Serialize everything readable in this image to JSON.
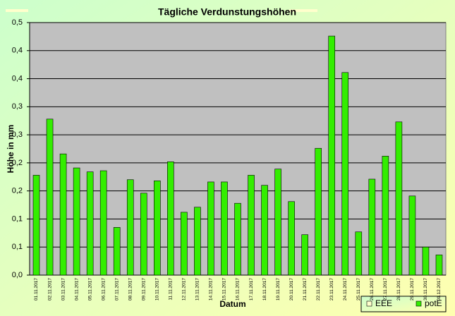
{
  "chart_data": {
    "type": "bar",
    "title": "Tägliche Verdunstungshöhen",
    "x_label": "Datum",
    "y_label": "Höhe in mm",
    "categories": [
      "01.11.2017",
      "02.11.2017",
      "03.11.2017",
      "04.11.2017",
      "05.11.2017",
      "06.11.2017",
      "07.11.2017",
      "08.11.2017",
      "09.11.2017",
      "10.11.2017",
      "11.11.2017",
      "12.11.2017",
      "13.11.2017",
      "14.11.2017",
      "15.11.2017",
      "16.11.2017",
      "17.11.2017",
      "18.11.2017",
      "19.11.2017",
      "20.11.2017",
      "21.11.2017",
      "22.11.2017",
      "23.11.2017",
      "24.11.2017",
      "25.11.2017",
      "26.11.2017",
      "27.11.2017",
      "28.11.2017",
      "29.11.2017",
      "30.11.2017",
      "01.12.2017"
    ],
    "series": [
      {
        "name": "EEE",
        "color": "#ffffcc",
        "values": [
          null,
          null,
          null,
          null,
          null,
          null,
          null,
          null,
          null,
          null,
          null,
          null,
          null,
          null,
          null,
          null,
          null,
          null,
          null,
          null,
          null,
          null,
          null,
          null,
          null,
          null,
          null,
          null,
          null,
          null,
          null
        ]
      },
      {
        "name": "potE",
        "color": "#33ee00",
        "values": [
          0.178,
          0.278,
          0.216,
          0.191,
          0.184,
          0.186,
          0.085,
          0.17,
          0.146,
          0.168,
          0.202,
          0.112,
          0.121,
          0.166,
          0.166,
          0.128,
          0.178,
          0.16,
          0.189,
          0.131,
          0.072,
          0.226,
          0.426,
          0.361,
          0.077,
          0.171,
          0.212,
          0.273,
          0.141,
          0.05,
          0.036
        ]
      }
    ],
    "ylim": [
      0,
      0.45
    ],
    "yticks": [
      {
        "value": 0,
        "label": "0,0"
      },
      {
        "value": 0.05,
        "label": "0,1"
      },
      {
        "value": 0.1,
        "label": "0,1"
      },
      {
        "value": 0.15,
        "label": "0,2"
      },
      {
        "value": 0.2,
        "label": "0,2"
      },
      {
        "value": 0.25,
        "label": "0,3"
      },
      {
        "value": 0.3,
        "label": "0,3"
      },
      {
        "value": 0.35,
        "label": "0,4"
      },
      {
        "value": 0.4,
        "label": "0,4"
      },
      {
        "value": 0.45,
        "label": "0,5"
      }
    ],
    "grid": true,
    "legend": "bottom-right"
  }
}
